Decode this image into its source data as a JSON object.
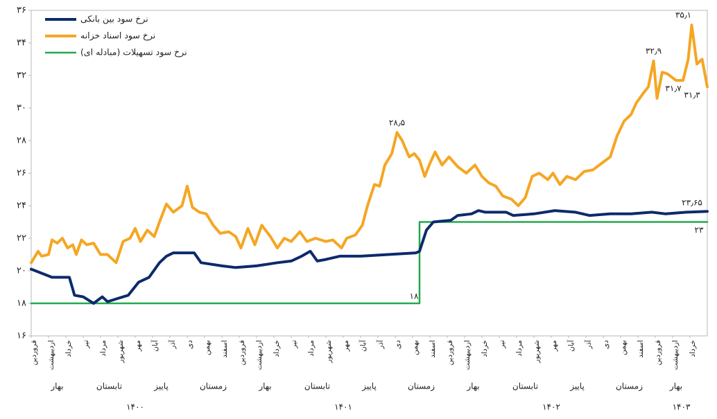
{
  "chart_data": {
    "type": "line",
    "xlim": [
      0,
      39
    ],
    "ylim": [
      16,
      36
    ],
    "grid": false,
    "legend": "upper-left",
    "yticks": [
      {
        "value": 16,
        "label": "۱۶"
      },
      {
        "value": 18,
        "label": "۱۸"
      },
      {
        "value": 20,
        "label": "۲۰"
      },
      {
        "value": 22,
        "label": "۲۲"
      },
      {
        "value": 24,
        "label": "۲۴"
      },
      {
        "value": 26,
        "label": "۲۶"
      },
      {
        "value": 28,
        "label": "۲۸"
      },
      {
        "value": 30,
        "label": "۳۰"
      },
      {
        "value": 32,
        "label": "۳۲"
      },
      {
        "value": 34,
        "label": "۳۴"
      },
      {
        "value": 36,
        "label": "۳۶"
      }
    ],
    "xticks": [
      {
        "value": 0,
        "label": "فروردین"
      },
      {
        "value": 1,
        "label": "اردیبهشت"
      },
      {
        "value": 2,
        "label": "خرداد"
      },
      {
        "value": 3,
        "label": "تیر"
      },
      {
        "value": 4,
        "label": "مرداد"
      },
      {
        "value": 5,
        "label": "شهریور"
      },
      {
        "value": 6,
        "label": "مهر"
      },
      {
        "value": 7,
        "label": "آبان"
      },
      {
        "value": 8,
        "label": "آذر"
      },
      {
        "value": 9,
        "label": "دی"
      },
      {
        "value": 10,
        "label": "بهمن"
      },
      {
        "value": 11,
        "label": "اسفند"
      },
      {
        "value": 12,
        "label": "فروردین"
      },
      {
        "value": 13,
        "label": "اردیبهشت"
      },
      {
        "value": 14,
        "label": "خرداد"
      },
      {
        "value": 15,
        "label": "تیر"
      },
      {
        "value": 16,
        "label": "مرداد"
      },
      {
        "value": 17,
        "label": "شهریور"
      },
      {
        "value": 18,
        "label": "مهر"
      },
      {
        "value": 19,
        "label": "آبان"
      },
      {
        "value": 20,
        "label": "آذر"
      },
      {
        "value": 21,
        "label": "دی"
      },
      {
        "value": 22,
        "label": "بهمن"
      },
      {
        "value": 23,
        "label": "اسفند"
      },
      {
        "value": 24,
        "label": "فروردین"
      },
      {
        "value": 25,
        "label": "اردیبهشت"
      },
      {
        "value": 26,
        "label": "خرداد"
      },
      {
        "value": 27,
        "label": "تیر"
      },
      {
        "value": 28,
        "label": "مرداد"
      },
      {
        "value": 29,
        "label": "شهریور"
      },
      {
        "value": 30,
        "label": "مهر"
      },
      {
        "value": 31,
        "label": "آبان"
      },
      {
        "value": 32,
        "label": "آذر"
      },
      {
        "value": 33,
        "label": "دی"
      },
      {
        "value": 34,
        "label": "بهمن"
      },
      {
        "value": 35,
        "label": "اسفند"
      },
      {
        "value": 36,
        "label": "فروردین"
      },
      {
        "value": 37,
        "label": "اردیبهشت"
      },
      {
        "value": 38,
        "label": "خرداد"
      }
    ],
    "seasons": [
      {
        "value": 1.5,
        "label": "بهار"
      },
      {
        "value": 4.5,
        "label": "تابستان"
      },
      {
        "value": 7.5,
        "label": "پاییز"
      },
      {
        "value": 10.5,
        "label": "زمستان"
      },
      {
        "value": 13.5,
        "label": "بهار"
      },
      {
        "value": 16.5,
        "label": "تابستان"
      },
      {
        "value": 19.5,
        "label": "پاییز"
      },
      {
        "value": 22.5,
        "label": "زمستان"
      },
      {
        "value": 25.5,
        "label": "بهار"
      },
      {
        "value": 28.5,
        "label": "تابستان"
      },
      {
        "value": 31.5,
        "label": "پاییز"
      },
      {
        "value": 34.5,
        "label": "زمستان"
      },
      {
        "value": 37.2,
        "label": "بهار"
      }
    ],
    "years": [
      {
        "value": 6,
        "label": "۱۴۰۰"
      },
      {
        "value": 18,
        "label": "۱۴۰۱"
      },
      {
        "value": 30,
        "label": "۱۴۰۲"
      },
      {
        "value": 37.5,
        "label": "۱۴۰۳"
      }
    ],
    "series": [
      {
        "name": "نرخ سود بین بانکی",
        "color": "#0d2a6b",
        "x": [
          0,
          1.2,
          2.2,
          2.5,
          3.0,
          3.6,
          4.1,
          4.4,
          5.0,
          5.6,
          6.2,
          6.8,
          7.4,
          7.8,
          8.2,
          9.4,
          9.8,
          11.0,
          11.8,
          13.0,
          14.2,
          15.0,
          15.6,
          16.1,
          16.5,
          17.0,
          17.8,
          19.0,
          20.6,
          22.2,
          22.4,
          22.8,
          23.2,
          24.2,
          24.6,
          25.4,
          25.8,
          26.2,
          27.4,
          27.8,
          29.0,
          30.2,
          31.4,
          32.2,
          33.4,
          34.6,
          35.8,
          36.6,
          37.8,
          39.0
        ],
        "values": [
          20.1,
          19.6,
          19.6,
          18.5,
          18.4,
          18.0,
          18.4,
          18.1,
          18.3,
          18.5,
          19.3,
          19.6,
          20.5,
          20.9,
          21.1,
          21.1,
          20.5,
          20.3,
          20.2,
          20.3,
          20.5,
          20.6,
          20.9,
          21.2,
          20.6,
          20.7,
          20.9,
          20.9,
          21.0,
          21.1,
          21.2,
          22.5,
          23.0,
          23.1,
          23.4,
          23.5,
          23.7,
          23.6,
          23.6,
          23.4,
          23.5,
          23.7,
          23.6,
          23.4,
          23.5,
          23.5,
          23.6,
          23.5,
          23.6,
          23.65
        ]
      },
      {
        "name": "نرخ سود اسناد خزانه",
        "color": "#f5a623",
        "x": [
          0,
          0.4,
          0.6,
          1.0,
          1.2,
          1.5,
          1.8,
          2.1,
          2.4,
          2.6,
          2.9,
          3.2,
          3.6,
          4.0,
          4.4,
          4.9,
          5.3,
          5.7,
          6.0,
          6.3,
          6.7,
          7.1,
          7.4,
          7.8,
          8.2,
          8.7,
          9.0,
          9.3,
          9.7,
          10.1,
          10.5,
          10.9,
          11.4,
          11.8,
          12.1,
          12.5,
          12.9,
          13.3,
          13.8,
          14.2,
          14.6,
          15.0,
          15.5,
          15.9,
          16.4,
          17.0,
          17.4,
          17.9,
          18.2,
          18.7,
          19.1,
          19.4,
          19.8,
          20.1,
          20.4,
          20.8,
          21.1,
          21.4,
          21.8,
          22.1,
          22.4,
          22.7,
          23.0,
          23.3,
          23.7,
          24.1,
          24.6,
          25.1,
          25.6,
          26.0,
          26.4,
          26.8,
          27.2,
          27.7,
          28.1,
          28.5,
          28.9,
          29.3,
          29.8,
          30.1,
          30.5,
          30.9,
          31.4,
          31.9,
          32.4,
          32.9,
          33.4,
          33.8,
          34.2,
          34.6,
          34.9,
          35.3,
          35.6,
          35.9,
          36.1,
          36.4,
          36.7,
          37.2,
          37.6,
          37.9,
          38.1,
          38.4,
          38.7,
          39.0
        ],
        "values": [
          20.5,
          21.2,
          20.9,
          21.0,
          21.9,
          21.7,
          22.0,
          21.4,
          21.6,
          21.0,
          21.9,
          21.6,
          21.7,
          21.0,
          21.0,
          20.5,
          21.8,
          22.0,
          22.6,
          21.8,
          22.5,
          22.1,
          23.0,
          24.1,
          23.6,
          24.0,
          25.2,
          23.9,
          23.6,
          23.5,
          22.8,
          22.3,
          22.4,
          22.1,
          21.4,
          22.6,
          21.6,
          22.8,
          22.1,
          21.4,
          22.0,
          21.8,
          22.4,
          21.8,
          22.0,
          21.8,
          21.9,
          21.4,
          22.0,
          22.2,
          22.8,
          24.0,
          25.3,
          25.2,
          26.5,
          27.2,
          28.5,
          28.0,
          27.0,
          27.2,
          26.8,
          25.8,
          26.6,
          27.3,
          26.5,
          27.0,
          26.4,
          26.0,
          26.5,
          25.8,
          25.4,
          25.2,
          24.6,
          24.4,
          24.0,
          24.5,
          25.8,
          26.0,
          25.6,
          26.0,
          25.3,
          25.8,
          25.6,
          26.1,
          26.2,
          26.6,
          27.0,
          28.3,
          29.2,
          29.6,
          30.3,
          30.9,
          31.3,
          32.9,
          30.6,
          32.2,
          32.1,
          31.7,
          31.7,
          33.0,
          35.1,
          32.7,
          33.0,
          31.3
        ]
      },
      {
        "name": "نرخ سود تسهیلات (مبادله ای)",
        "color": "#22a94b",
        "x": [
          0,
          22.4,
          22.4,
          39
        ],
        "values": [
          18,
          18,
          23,
          23
        ]
      }
    ],
    "annotations": [
      {
        "label": "۳۵٫۱",
        "x": 38.1,
        "y": 35.1
      },
      {
        "label": "۳۲٫۹",
        "x": 35.9,
        "y": 32.9
      },
      {
        "label": "۲۸٫۵",
        "x": 21.1,
        "y": 28.5
      },
      {
        "label": "۳۱٫۷",
        "x": 37.6,
        "y": 31.7
      },
      {
        "label": "۳۱٫۳",
        "x": 39.0,
        "y": 31.3
      },
      {
        "label": "۲۳٫۶۵",
        "x": 39.0,
        "y": 23.65
      },
      {
        "label": "۲۳",
        "x": 39.0,
        "y": 23
      },
      {
        "label": "۱۸",
        "x": 22.4,
        "y": 18
      }
    ]
  }
}
